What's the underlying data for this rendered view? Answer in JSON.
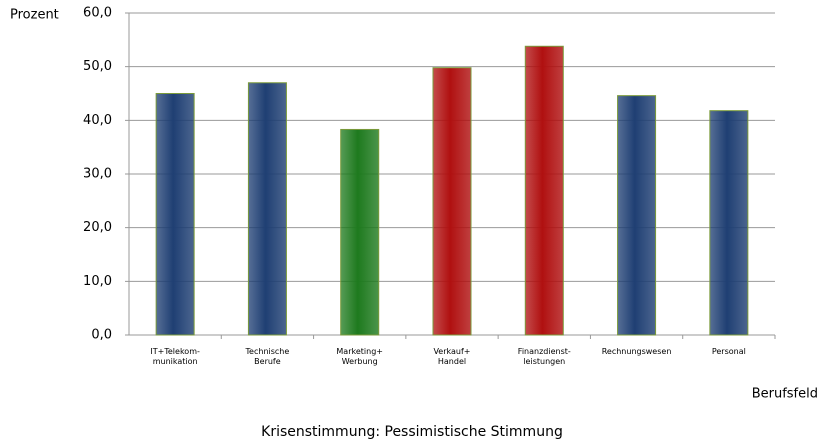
{
  "chart_data": {
    "type": "bar",
    "title": "Krisenstimmung: Pessimistische Stimmung",
    "y_label": "Prozent",
    "x_label": "Berufsfeld",
    "categories": [
      "IT+Telekom-\nmunikation",
      "Technische\nBerufe",
      "Marketing+\nWerbung",
      "Verkauf+\nHandel",
      "Finanzdienst-\nleistungen",
      "Rechnungswesen",
      "Personal"
    ],
    "values": [
      45.0,
      47.0,
      38.3,
      49.8,
      53.8,
      44.6,
      41.8
    ],
    "colors": [
      "#1f3f73",
      "#1f3f73",
      "#1e7a1e",
      "#b01010",
      "#b01010",
      "#1f3f73",
      "#1f3f73"
    ],
    "ylim": [
      0,
      60
    ],
    "yticks": [
      {
        "value": 0,
        "label": "0,0"
      },
      {
        "value": 10,
        "label": "10,0"
      },
      {
        "value": 20,
        "label": "20,0"
      },
      {
        "value": 30,
        "label": "30,0"
      },
      {
        "value": 40,
        "label": "40,0"
      },
      {
        "value": 50,
        "label": "50,0"
      },
      {
        "value": 60,
        "label": "60,0"
      }
    ],
    "grid": true
  }
}
